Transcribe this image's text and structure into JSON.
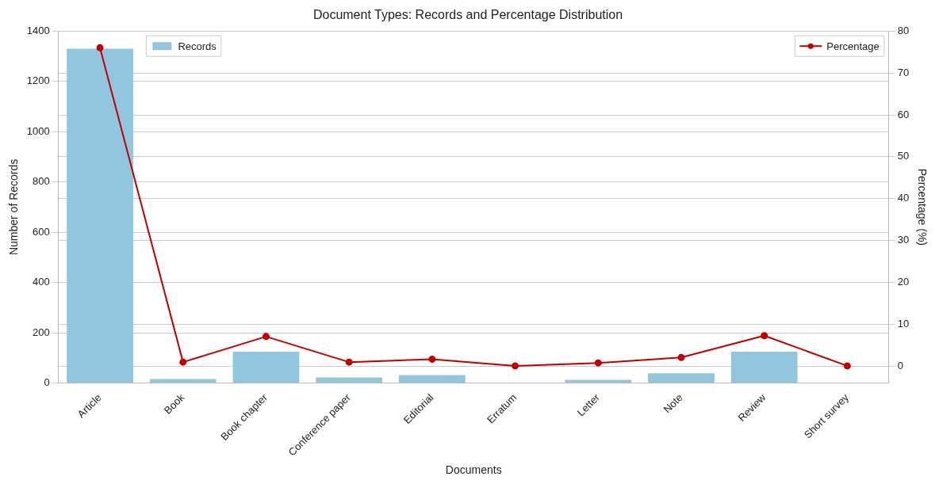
{
  "chart_data": {
    "type": "bar",
    "title": "Document Types: Records and Percentage Distribution",
    "xlabel": "Documents",
    "ylabel": "Number of Records",
    "y2label": "Percentage (%)",
    "categories": [
      "Article",
      "Book",
      "Book chapter",
      "Conference paper",
      "Editorial",
      "Erratum",
      "Letter",
      "Note",
      "Review",
      "Short survey"
    ],
    "series": [
      {
        "name": "Records",
        "color": "#92c5de",
        "values": [
          1330,
          16,
          125,
          22,
          32,
          null,
          13,
          39,
          125,
          null
        ]
      },
      {
        "name": "Percentage",
        "type": "line",
        "axis": "y2",
        "color": "#c00000",
        "marker": "circle",
        "values": [
          76,
          1.0,
          7.1,
          1.0,
          1.7,
          0.1,
          0.8,
          2.1,
          7.3,
          0.1
        ]
      }
    ],
    "ylim": [
      0,
      1400
    ],
    "yticks": [
      0,
      200,
      400,
      600,
      800,
      1000,
      1200,
      1400
    ],
    "y2lim": [
      -4,
      80
    ],
    "y2ticks": [
      0,
      10,
      20,
      30,
      40,
      50,
      60,
      70,
      80
    ],
    "grid": "y",
    "legend": "top"
  }
}
